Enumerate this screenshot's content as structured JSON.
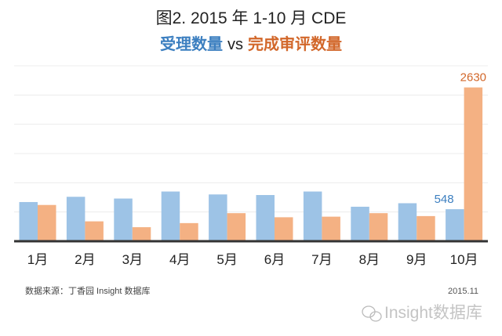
{
  "chart_data": {
    "type": "bar",
    "title": "图2. 2015 年 1-10 月 CDE",
    "subtitle": {
      "part1": "受理数量",
      "vs": "vs",
      "part2": "完成审评数量"
    },
    "categories": [
      "1月",
      "2月",
      "3月",
      "4月",
      "5月",
      "6月",
      "7月",
      "8月",
      "9月",
      "10月"
    ],
    "series": [
      {
        "name": "受理数量",
        "color": "#9dc3e6",
        "label_color": "#3c7fc0",
        "values": [
          670,
          760,
          730,
          850,
          800,
          790,
          850,
          590,
          650,
          548
        ]
      },
      {
        "name": "完成审评数量",
        "color": "#f4b183",
        "label_color": "#d2672a",
        "values": [
          620,
          340,
          240,
          310,
          480,
          410,
          420,
          480,
          430,
          2630
        ]
      }
    ],
    "data_labels": [
      {
        "series": 0,
        "index": 9,
        "text": "548"
      },
      {
        "series": 1,
        "index": 9,
        "text": "2630"
      }
    ],
    "ylim": [
      0,
      3000
    ],
    "grid_step": 500,
    "grid": true,
    "xlabel": "",
    "ylabel": ""
  },
  "footer": {
    "source": "数据来源：丁香园 Insight 数据库",
    "date": "2015.11",
    "watermark": "Insight数据库"
  }
}
